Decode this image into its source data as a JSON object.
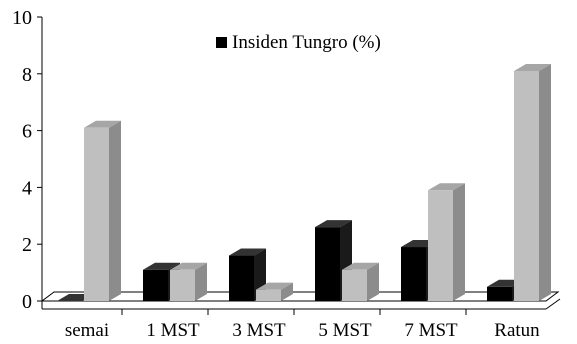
{
  "chart_data": {
    "type": "bar",
    "categories": [
      "semai",
      "1 MST",
      "3 MST",
      "5 MST",
      "7 MST",
      "Ratun"
    ],
    "series": [
      {
        "name": "Insiden Tungro (%)",
        "values": [
          0.0,
          1.1,
          1.6,
          2.6,
          1.9,
          0.5
        ],
        "color": "#000000"
      },
      {
        "values": [
          6.1,
          1.1,
          0.4,
          1.1,
          3.9,
          8.1
        ],
        "color": "#bfbfbf"
      }
    ],
    "ylim": [
      0,
      10
    ],
    "yticks": [
      "0",
      "2",
      "4",
      "6",
      "8",
      "10"
    ],
    "title": "",
    "xlabel": "",
    "ylabel": "",
    "legend": {
      "position": "top-center",
      "entries": [
        "Insiden Tungro (%)"
      ]
    },
    "grid": false,
    "style": "3d-bars"
  }
}
